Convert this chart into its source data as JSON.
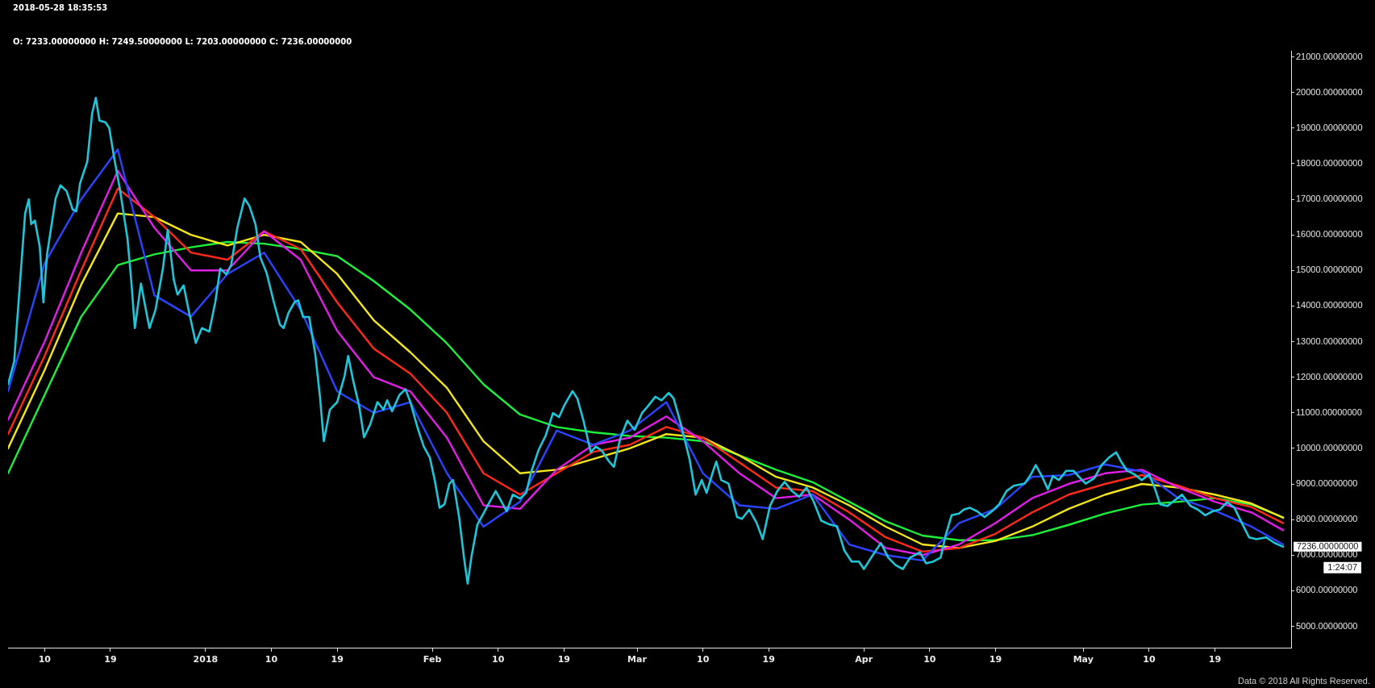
{
  "chart_data": {
    "type": "line",
    "subtitle": "O: 7233.00000000 H: 7249.50000000 L: 7203.00000000 C: 7236.00000000",
    "annotations": [
      "2018-05-28 18:35:53",
      "7236.00000000",
      "1:24:07",
      "Data © 2018 All Rights Reserved."
    ],
    "x": [
      "2017-12-05",
      "2017-12-10",
      "2017-12-15",
      "2017-12-20",
      "2017-12-25",
      "2017-12-30",
      "2018-01-04",
      "2018-01-09",
      "2018-01-14",
      "2018-01-19",
      "2018-01-24",
      "2018-01-29",
      "2018-02-03",
      "2018-02-08",
      "2018-02-13",
      "2018-02-18",
      "2018-02-23",
      "2018-02-28",
      "2018-03-05",
      "2018-03-10",
      "2018-03-15",
      "2018-03-20",
      "2018-03-25",
      "2018-03-30",
      "2018-04-04",
      "2018-04-09",
      "2018-04-14",
      "2018-04-19",
      "2018-04-24",
      "2018-04-29",
      "2018-05-04",
      "2018-05-09",
      "2018-05-14",
      "2018-05-19",
      "2018-05-24",
      "2018-05-28T08:00"
    ],
    "series": [
      {
        "color": "#1fc6da",
        "x": [
          "2017-12-05T00:00",
          "2017-12-05T20:00",
          "2017-12-07T08:00",
          "2017-12-07T20:00",
          "2017-12-08T04:00",
          "2017-12-08T16:00",
          "2017-12-09T08:00",
          "2017-12-09T20:00",
          "2017-12-10T08:00",
          "2017-12-11T12:00",
          "2017-12-12T04:00",
          "2017-12-13T00:00",
          "2017-12-13T20:00",
          "2017-12-14T08:00",
          "2017-12-14T20:00",
          "2017-12-15T20:00",
          "2017-12-16T12:00",
          "2017-12-17T00:00",
          "2017-12-17T12:00",
          "2017-12-18T08:00",
          "2017-12-18T20:00",
          "2017-12-19T12:00",
          "2017-12-20T08:00",
          "2017-12-21T08:00",
          "2017-12-21T20:00",
          "2017-12-22T08:00",
          "2017-12-23T04:00",
          "2017-12-23T20:00",
          "2017-12-24T08:00",
          "2017-12-25T04:00",
          "2017-12-26T04:00",
          "2017-12-26T20:00",
          "2017-12-27T16:00",
          "2017-12-28T04:00",
          "2017-12-29T00:00",
          "2017-12-29T16:00",
          "2017-12-30T16:00",
          "2017-12-31T12:00",
          "2018-01-01T12:00",
          "2018-01-02T08:00",
          "2018-01-03T00:00",
          "2018-01-03T20:00",
          "2018-01-04T12:00",
          "2018-01-05T08:00",
          "2018-01-06T08:00",
          "2018-01-07T00:00",
          "2018-01-07T20:00",
          "2018-01-08T12:00",
          "2018-01-09T08:00",
          "2018-01-10T08:00",
          "2018-01-11T04:00",
          "2018-01-11T16:00",
          "2018-01-12T08:00",
          "2018-01-13T04:00",
          "2018-01-13T16:00",
          "2018-01-14T08:00",
          "2018-01-15T04:00",
          "2018-01-16T00:00",
          "2018-01-16T16:00",
          "2018-01-17T04:00",
          "2018-01-18T00:00",
          "2018-01-19T00:00",
          "2018-01-20T00:00",
          "2018-01-20T12:00",
          "2018-01-21T04:00",
          "2018-01-22T00:00",
          "2018-01-22T16:00",
          "2018-01-23T12:00",
          "2018-01-24T12:00",
          "2018-01-25T08:00",
          "2018-01-25T20:00",
          "2018-01-26T12:00",
          "2018-01-27T12:00",
          "2018-01-28T08:00",
          "2018-01-29T00:00",
          "2018-01-30T00:00",
          "2018-01-30T20:00",
          "2018-01-31T16:00",
          "2018-02-01T08:00",
          "2018-02-02T00:00",
          "2018-02-02T16:00",
          "2018-02-03T08:00",
          "2018-02-03T20:00",
          "2018-02-04T16:00",
          "2018-02-05T08:00",
          "2018-02-05T20:00",
          "2018-02-06T08:00",
          "2018-02-07T04:00",
          "2018-02-08T00:00",
          "2018-02-08T16:00",
          "2018-02-09T16:00",
          "2018-02-10T12:00",
          "2018-02-11T04:00",
          "2018-02-12T00:00",
          "2018-02-13T00:00",
          "2018-02-13T20:00",
          "2018-02-14T12:00",
          "2018-02-15T12:00",
          "2018-02-16T12:00",
          "2018-02-17T12:00",
          "2018-02-18T08:00",
          "2018-02-19T00:00",
          "2018-02-20T04:00",
          "2018-02-20T20:00",
          "2018-02-21T16:00",
          "2018-02-22T16:00",
          "2018-02-23T08:00",
          "2018-02-24T04:00",
          "2018-02-25T04:00",
          "2018-02-25T20:00",
          "2018-02-26T16:00",
          "2018-02-27T16:00",
          "2018-02-28T16:00",
          "2018-03-01T16:00",
          "2018-03-02T12:00",
          "2018-03-03T12:00",
          "2018-03-04T08:00",
          "2018-03-05T08:00",
          "2018-03-06T00:00",
          "2018-03-07T00:00",
          "2018-03-08T04:00",
          "2018-03-09T00:00",
          "2018-03-09T20:00",
          "2018-03-10T12:00",
          "2018-03-11T08:00",
          "2018-03-11T20:00",
          "2018-03-12T12:00",
          "2018-03-13T12:00",
          "2018-03-14T16:00",
          "2018-03-15T08:00",
          "2018-03-16T08:00",
          "2018-03-17T08:00",
          "2018-03-18T04:00",
          "2018-03-19T04:00",
          "2018-03-20T04:00",
          "2018-03-21T04:00",
          "2018-03-22T04:00",
          "2018-03-23T04:00",
          "2018-03-24T04:00",
          "2018-03-25T04:00",
          "2018-03-26T04:00",
          "2018-03-27T08:00",
          "2018-03-28T08:00",
          "2018-03-29T08:00",
          "2018-03-30T08:00",
          "2018-03-31T08:00",
          "2018-04-01T00:00",
          "2018-04-02T00:00",
          "2018-04-03T08:00",
          "2018-04-04T08:00",
          "2018-04-05T08:00",
          "2018-04-06T08:00",
          "2018-04-07T08:00",
          "2018-04-08T16:00",
          "2018-04-09T12:00",
          "2018-04-10T12:00",
          "2018-04-11T12:00",
          "2018-04-12T04:00",
          "2018-04-13T00:00",
          "2018-04-14T00:00",
          "2018-04-14T16:00",
          "2018-04-15T12:00",
          "2018-04-16T12:00",
          "2018-04-17T12:00",
          "2018-04-18T12:00",
          "2018-04-19T12:00",
          "2018-04-20T12:00",
          "2018-04-21T12:00",
          "2018-04-23T00:00",
          "2018-04-23T20:00",
          "2018-04-24T12:00",
          "2018-04-25T08:00",
          "2018-04-26T04:00",
          "2018-04-26T20:00",
          "2018-04-27T16:00",
          "2018-04-28T16:00",
          "2018-04-29T16:00",
          "2018-04-30T08:00",
          "2018-05-01T08:00",
          "2018-05-02T12:00",
          "2018-05-03T12:00",
          "2018-05-04T12:00",
          "2018-05-05T12:00",
          "2018-05-06T04:00",
          "2018-05-07T00:00",
          "2018-05-08T00:00",
          "2018-05-09T00:00",
          "2018-05-10T00:00",
          "2018-05-10T20:00",
          "2018-05-11T12:00",
          "2018-05-12T12:00",
          "2018-05-13T12:00",
          "2018-05-14T12:00",
          "2018-05-15T16:00",
          "2018-05-16T16:00",
          "2018-05-17T16:00",
          "2018-05-18T16:00",
          "2018-05-19T16:00",
          "2018-05-20T16:00",
          "2018-05-21T16:00",
          "2018-05-22T16:00",
          "2018-05-23T16:00",
          "2018-05-24T16:00",
          "2018-05-26T00:00",
          "2018-05-27T04:00",
          "2018-05-28T08:00"
        ],
        "values": [
          11800,
          12440,
          16600,
          17000,
          16300,
          16400,
          15670,
          14100,
          15460,
          17020,
          17390,
          17230,
          16710,
          16660,
          17440,
          18060,
          19420,
          19850,
          19210,
          19160,
          19000,
          18170,
          17230,
          15880,
          14730,
          13380,
          14630,
          13900,
          13380,
          13900,
          15050,
          16140,
          14730,
          14320,
          14580,
          13900,
          12960,
          13380,
          13280,
          14110,
          15050,
          14890,
          15150,
          16190,
          17020,
          16810,
          16290,
          15360,
          14940,
          14110,
          13480,
          13380,
          13800,
          14110,
          14160,
          13690,
          13690,
          12650,
          11400,
          10200,
          11090,
          11300,
          12030,
          12600,
          11920,
          11190,
          10310,
          10670,
          11300,
          11090,
          11350,
          11040,
          11500,
          11660,
          11300,
          10570,
          10050,
          9740,
          9110,
          8330,
          8430,
          9010,
          9110,
          8070,
          6930,
          6200,
          6930,
          7860,
          8170,
          8430,
          8800,
          8490,
          8230,
          8700,
          8590,
          8750,
          9320,
          9940,
          10360,
          10990,
          10880,
          11190,
          11610,
          11400,
          10780,
          9890,
          10050,
          9940,
          9630,
          9480,
          10260,
          10780,
          10520,
          10990,
          11190,
          11450,
          11350,
          11560,
          11400,
          10670,
          9700,
          8700,
          9110,
          8750,
          9320,
          9630,
          9110,
          9010,
          8070,
          8020,
          8280,
          7910,
          7450,
          8380,
          8800,
          9060,
          8800,
          8640,
          8900,
          8490,
          7970,
          7860,
          7810,
          7130,
          6820,
          6820,
          6610,
          6930,
          7340,
          6930,
          6720,
          6610,
          6930,
          7080,
          6770,
          6820,
          6930,
          7550,
          8120,
          8170,
          8280,
          8330,
          8230,
          8070,
          8230,
          8430,
          8800,
          8950,
          9010,
          9270,
          9530,
          9220,
          8850,
          9220,
          9110,
          9370,
          9370,
          9220,
          9010,
          9160,
          9530,
          9740,
          9890,
          9630,
          9370,
          9270,
          9110,
          9270,
          8850,
          8430,
          8380,
          8540,
          8700,
          8380,
          8280,
          8120,
          8230,
          8280,
          8490,
          8330,
          7910,
          7500,
          7450,
          7500,
          7340,
          7236
        ]
      },
      {
        "color": "#2b45ff",
        "values": [
          11600,
          15200,
          17000,
          18400,
          14300,
          13700,
          14900,
          15500,
          13900,
          11600,
          11000,
          11300,
          9300,
          7800,
          8500,
          10500,
          10100,
          10500,
          11300,
          9300,
          8400,
          8300,
          8700,
          7300,
          7000,
          6850,
          7900,
          8300,
          9200,
          9250,
          9550,
          9350,
          8600,
          8250,
          7800,
          7300
        ]
      },
      {
        "color": "#e01ee6",
        "values": [
          10800,
          13000,
          15500,
          17800,
          16200,
          15000,
          15000,
          16100,
          15300,
          13300,
          12000,
          11600,
          10300,
          8400,
          8300,
          9400,
          10100,
          10300,
          10900,
          10200,
          9300,
          8600,
          8700,
          8000,
          7200,
          7000,
          7300,
          7900,
          8600,
          9000,
          9300,
          9400,
          8900,
          8500,
          8200,
          7700
        ]
      },
      {
        "color": "#ff2a1a",
        "values": [
          10400,
          12600,
          15000,
          17300,
          16500,
          15500,
          15300,
          16100,
          15600,
          14100,
          12800,
          12100,
          11000,
          9300,
          8700,
          9300,
          9900,
          10100,
          10600,
          10300,
          9600,
          8900,
          8800,
          8200,
          7500,
          7100,
          7200,
          7600,
          8200,
          8700,
          9000,
          9250,
          8950,
          8600,
          8350,
          7900
        ]
      },
      {
        "color": "#f5e61a",
        "values": [
          10000,
          12200,
          14600,
          16600,
          16500,
          16000,
          15700,
          16000,
          15800,
          14900,
          13600,
          12700,
          11700,
          10200,
          9300,
          9400,
          9700,
          10000,
          10400,
          10300,
          9800,
          9200,
          8900,
          8400,
          7800,
          7300,
          7200,
          7400,
          7800,
          8300,
          8700,
          9000,
          8900,
          8700,
          8450,
          8050
        ]
      },
      {
        "color": "#1cf03c",
        "values": [
          9300,
          11500,
          13700,
          15150,
          15450,
          15650,
          15800,
          15750,
          15600,
          15400,
          14700,
          13900,
          12950,
          11800,
          10950,
          10600,
          10450,
          10350,
          10300,
          10200,
          9800,
          9400,
          9050,
          8500,
          7950,
          7550,
          7420,
          7420,
          7560,
          7850,
          8170,
          8420,
          8500,
          8600,
          8420,
          8060
        ]
      }
    ],
    "xlim": [
      "2017-12-05",
      "2018-05-29T10:00"
    ],
    "xticks": [
      {
        "value": "2017-12-10",
        "label": "10"
      },
      {
        "value": "2017-12-19",
        "label": "19"
      },
      {
        "value": "2018-01-01",
        "label": "2018"
      },
      {
        "value": "2018-01-10",
        "label": "10"
      },
      {
        "value": "2018-01-19",
        "label": "19"
      },
      {
        "value": "2018-02-01",
        "label": "Feb"
      },
      {
        "value": "2018-02-10",
        "label": "10"
      },
      {
        "value": "2018-02-19",
        "label": "19"
      },
      {
        "value": "2018-03-01",
        "label": "Mar"
      },
      {
        "value": "2018-03-10",
        "label": "10"
      },
      {
        "value": "2018-03-19",
        "label": "19"
      },
      {
        "value": "2018-04-01",
        "label": "Apr"
      },
      {
        "value": "2018-04-10",
        "label": "10"
      },
      {
        "value": "2018-04-19",
        "label": "19"
      },
      {
        "value": "2018-05-01",
        "label": "May"
      },
      {
        "value": "2018-05-10",
        "label": "10"
      },
      {
        "value": "2018-05-19",
        "label": "19"
      }
    ],
    "ylim": [
      4400,
      21170
    ],
    "yticks": [
      {
        "value": 5000,
        "label": "5000.00000000"
      },
      {
        "value": 6000,
        "label": "6000.00000000"
      },
      {
        "value": 7000,
        "label": "7000.00000000"
      },
      {
        "value": 8000,
        "label": "8000.00000000"
      },
      {
        "value": 9000,
        "label": "9000.00000000"
      },
      {
        "value": 10000,
        "label": "10000.00000000"
      },
      {
        "value": 11000,
        "label": "11000.00000000"
      },
      {
        "value": 12000,
        "label": "12000.00000000"
      },
      {
        "value": 13000,
        "label": "13000.00000000"
      },
      {
        "value": 14000,
        "label": "14000.00000000"
      },
      {
        "value": 15000,
        "label": "15000.00000000"
      },
      {
        "value": 16000,
        "label": "16000.00000000"
      },
      {
        "value": 17000,
        "label": "17000.00000000"
      },
      {
        "value": 18000,
        "label": "18000.00000000"
      },
      {
        "value": 19000,
        "label": "19000.00000000"
      },
      {
        "value": 20000,
        "label": "20000.00000000"
      },
      {
        "value": 21000,
        "label": "21000.00000000"
      }
    ],
    "grid": false,
    "legend": false,
    "marker": "none",
    "line_style": "solid"
  }
}
